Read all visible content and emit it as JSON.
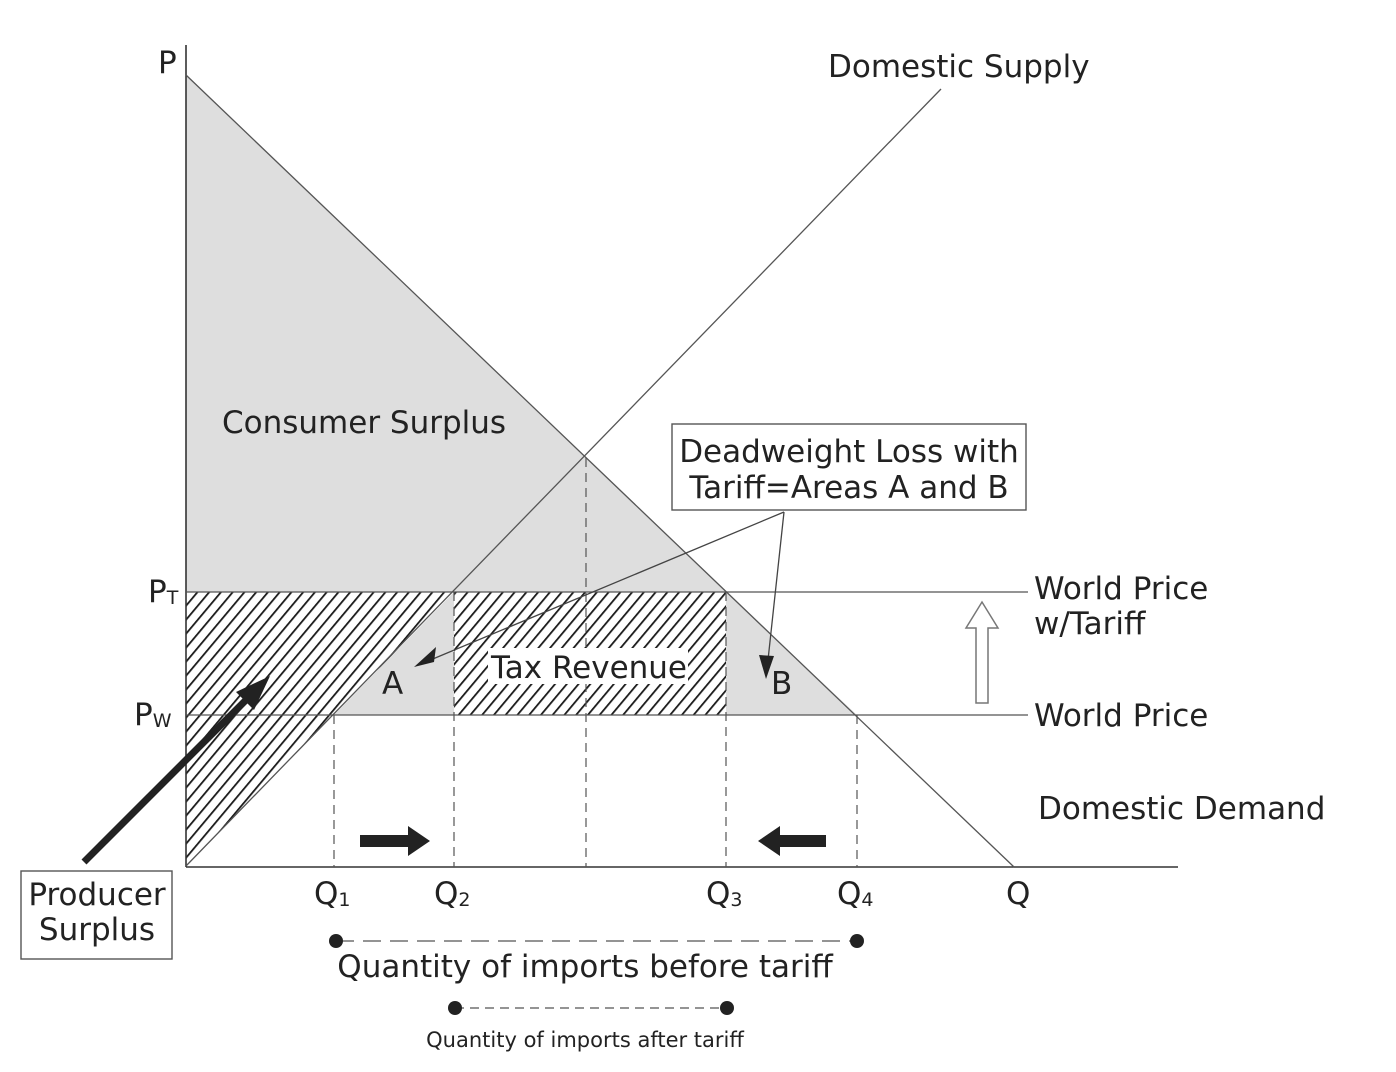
{
  "axes": {
    "y_label": "P",
    "x_label": "Q",
    "price_tariff": {
      "main": "P",
      "sub": "T"
    },
    "price_world": {
      "main": "P",
      "sub": "W"
    },
    "q1": {
      "main": "Q",
      "sub": "1"
    },
    "q2": {
      "main": "Q",
      "sub": "2"
    },
    "q3": {
      "main": "Q",
      "sub": "3"
    },
    "q4": {
      "main": "Q",
      "sub": "4"
    }
  },
  "curves": {
    "supply": "Domestic Supply",
    "demand": "Domestic Demand",
    "world_price_tariff_line1": "World Price",
    "world_price_tariff_line2": "w/Tariff",
    "world_price": "World Price"
  },
  "areas": {
    "consumer_surplus": "Consumer Surplus",
    "tax_revenue": "Tax Revenue",
    "area_a": "A",
    "area_b": "B"
  },
  "callouts": {
    "deadweight_line1": "Deadweight Loss with",
    "deadweight_line2": "Tariff=Areas A and B",
    "producer_line1": "Producer",
    "producer_line2": "Surplus"
  },
  "imports": {
    "before": "Quantity of imports before tariff",
    "after": "Quantity of imports after tariff"
  },
  "colors": {
    "area_fill": "#dedede",
    "line": "#333333",
    "hatch": "#1a1a1a"
  }
}
